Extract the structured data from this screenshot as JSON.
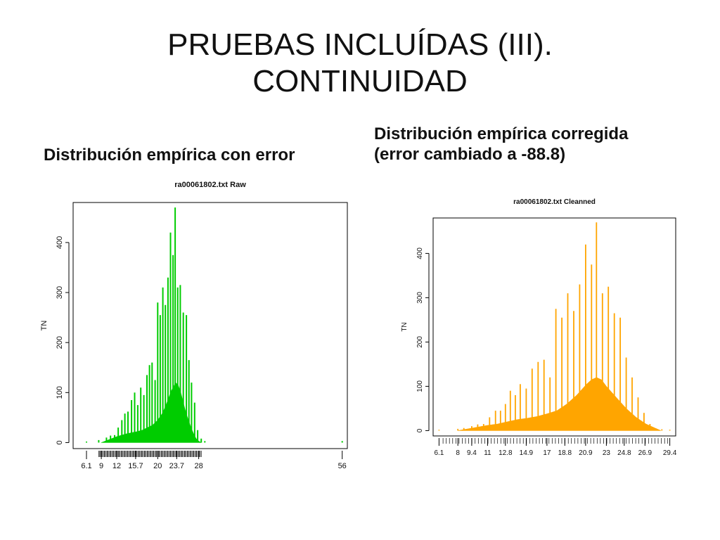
{
  "slide": {
    "title_line1": "PRUEBAS INCLUÍDAS (III).",
    "title_line2": "CONTINUIDAD",
    "left_heading": "Distribución empírica con error",
    "right_heading_line1": "Distribución empírica corregida",
    "right_heading_line2": "(error cambiado a -88.8)"
  },
  "chart_data": [
    {
      "type": "bar",
      "title": "ra00061802.txt Raw",
      "ylabel": "TN",
      "xlabel": "",
      "color": "#00cc00",
      "xlim": [
        3.5,
        57
      ],
      "ylim": [
        -12,
        480
      ],
      "x_ticks": [
        6.1,
        9,
        12,
        15.7,
        20,
        23.7,
        28,
        56
      ],
      "y_ticks": [
        0,
        100,
        200,
        300,
        400
      ],
      "spikes": [
        {
          "x": 6.1,
          "y": 2
        },
        {
          "x": 8.5,
          "y": 5
        },
        {
          "x": 10,
          "y": 10
        },
        {
          "x": 10.8,
          "y": 14
        },
        {
          "x": 11.6,
          "y": 15
        },
        {
          "x": 12.3,
          "y": 30
        },
        {
          "x": 13,
          "y": 45
        },
        {
          "x": 13.6,
          "y": 58
        },
        {
          "x": 14.2,
          "y": 62
        },
        {
          "x": 14.9,
          "y": 85
        },
        {
          "x": 15.5,
          "y": 100
        },
        {
          "x": 16.1,
          "y": 75
        },
        {
          "x": 16.7,
          "y": 110
        },
        {
          "x": 17.3,
          "y": 95
        },
        {
          "x": 17.9,
          "y": 135
        },
        {
          "x": 18.4,
          "y": 155
        },
        {
          "x": 18.9,
          "y": 160
        },
        {
          "x": 19.5,
          "y": 125
        },
        {
          "x": 20,
          "y": 280
        },
        {
          "x": 20.5,
          "y": 255
        },
        {
          "x": 21,
          "y": 310
        },
        {
          "x": 21.5,
          "y": 275
        },
        {
          "x": 22,
          "y": 330
        },
        {
          "x": 22.5,
          "y": 420
        },
        {
          "x": 23,
          "y": 375
        },
        {
          "x": 23.4,
          "y": 470
        },
        {
          "x": 23.9,
          "y": 310
        },
        {
          "x": 24.4,
          "y": 315
        },
        {
          "x": 25,
          "y": 260
        },
        {
          "x": 25.6,
          "y": 255
        },
        {
          "x": 26.1,
          "y": 165
        },
        {
          "x": 26.6,
          "y": 120
        },
        {
          "x": 27.2,
          "y": 80
        },
        {
          "x": 27.8,
          "y": 25
        },
        {
          "x": 28.5,
          "y": 8
        },
        {
          "x": 29.2,
          "y": 3
        },
        {
          "x": 56,
          "y": 3
        }
      ],
      "envelope": [
        {
          "x": 9,
          "y": 0
        },
        {
          "x": 10,
          "y": 4
        },
        {
          "x": 11,
          "y": 8
        },
        {
          "x": 12,
          "y": 12
        },
        {
          "x": 13,
          "y": 15
        },
        {
          "x": 14,
          "y": 18
        },
        {
          "x": 15,
          "y": 20
        },
        {
          "x": 16,
          "y": 22
        },
        {
          "x": 17,
          "y": 25
        },
        {
          "x": 18,
          "y": 30
        },
        {
          "x": 19,
          "y": 35
        },
        {
          "x": 20,
          "y": 45
        },
        {
          "x": 21,
          "y": 60
        },
        {
          "x": 22,
          "y": 85
        },
        {
          "x": 22.5,
          "y": 100
        },
        {
          "x": 23,
          "y": 110
        },
        {
          "x": 23.5,
          "y": 120
        },
        {
          "x": 24,
          "y": 115
        },
        {
          "x": 24.5,
          "y": 100
        },
        {
          "x": 25,
          "y": 80
        },
        {
          "x": 25.5,
          "y": 60
        },
        {
          "x": 26,
          "y": 45
        },
        {
          "x": 26.5,
          "y": 30
        },
        {
          "x": 27,
          "y": 18
        },
        {
          "x": 27.5,
          "y": 8
        },
        {
          "x": 28,
          "y": 3
        },
        {
          "x": 28.5,
          "y": 0
        }
      ],
      "rug_range": [
        8.5,
        28.5
      ]
    },
    {
      "type": "bar",
      "title": "ra00061802.txt Cleanned",
      "ylabel": "TN",
      "xlabel": "",
      "color": "#ffa500",
      "xlim": [
        5.5,
        30
      ],
      "ylim": [
        -12,
        480
      ],
      "x_ticks": [
        6.1,
        8,
        9.4,
        11,
        12.8,
        14.9,
        17,
        18.8,
        20.9,
        23,
        24.8,
        26.9,
        29.4
      ],
      "y_ticks": [
        0,
        100,
        200,
        300,
        400
      ],
      "spikes": [
        {
          "x": 6.1,
          "y": 2
        },
        {
          "x": 8,
          "y": 4
        },
        {
          "x": 8.6,
          "y": 6
        },
        {
          "x": 9.4,
          "y": 10
        },
        {
          "x": 10,
          "y": 14
        },
        {
          "x": 10.6,
          "y": 15
        },
        {
          "x": 11.2,
          "y": 30
        },
        {
          "x": 11.8,
          "y": 45
        },
        {
          "x": 12.3,
          "y": 45
        },
        {
          "x": 12.8,
          "y": 60
        },
        {
          "x": 13.3,
          "y": 90
        },
        {
          "x": 13.8,
          "y": 80
        },
        {
          "x": 14.3,
          "y": 105
        },
        {
          "x": 14.9,
          "y": 95
        },
        {
          "x": 15.5,
          "y": 140
        },
        {
          "x": 16.1,
          "y": 155
        },
        {
          "x": 16.7,
          "y": 160
        },
        {
          "x": 17.3,
          "y": 120
        },
        {
          "x": 17.9,
          "y": 275
        },
        {
          "x": 18.5,
          "y": 255
        },
        {
          "x": 19.1,
          "y": 310
        },
        {
          "x": 19.7,
          "y": 270
        },
        {
          "x": 20.3,
          "y": 330
        },
        {
          "x": 20.9,
          "y": 420
        },
        {
          "x": 21.5,
          "y": 375
        },
        {
          "x": 22,
          "y": 470
        },
        {
          "x": 22.6,
          "y": 310
        },
        {
          "x": 23.2,
          "y": 325
        },
        {
          "x": 23.8,
          "y": 265
        },
        {
          "x": 24.4,
          "y": 255
        },
        {
          "x": 25,
          "y": 165
        },
        {
          "x": 25.6,
          "y": 120
        },
        {
          "x": 26.2,
          "y": 75
        },
        {
          "x": 26.8,
          "y": 40
        },
        {
          "x": 27.4,
          "y": 15
        },
        {
          "x": 28,
          "y": 5
        },
        {
          "x": 28.6,
          "y": 3
        },
        {
          "x": 29.4,
          "y": 2
        }
      ],
      "envelope": [
        {
          "x": 8,
          "y": 0
        },
        {
          "x": 9,
          "y": 4
        },
        {
          "x": 10,
          "y": 8
        },
        {
          "x": 11,
          "y": 12
        },
        {
          "x": 12,
          "y": 15
        },
        {
          "x": 13,
          "y": 20
        },
        {
          "x": 14,
          "y": 25
        },
        {
          "x": 15,
          "y": 28
        },
        {
          "x": 16,
          "y": 32
        },
        {
          "x": 17,
          "y": 38
        },
        {
          "x": 18,
          "y": 45
        },
        {
          "x": 19,
          "y": 60
        },
        {
          "x": 20,
          "y": 80
        },
        {
          "x": 21,
          "y": 105
        },
        {
          "x": 21.5,
          "y": 115
        },
        {
          "x": 22,
          "y": 120
        },
        {
          "x": 22.5,
          "y": 115
        },
        {
          "x": 23,
          "y": 100
        },
        {
          "x": 24,
          "y": 75
        },
        {
          "x": 25,
          "y": 50
        },
        {
          "x": 26,
          "y": 30
        },
        {
          "x": 27,
          "y": 15
        },
        {
          "x": 28,
          "y": 5
        },
        {
          "x": 28.5,
          "y": 0
        }
      ],
      "rug_range": [
        6.5,
        29.2
      ]
    }
  ]
}
